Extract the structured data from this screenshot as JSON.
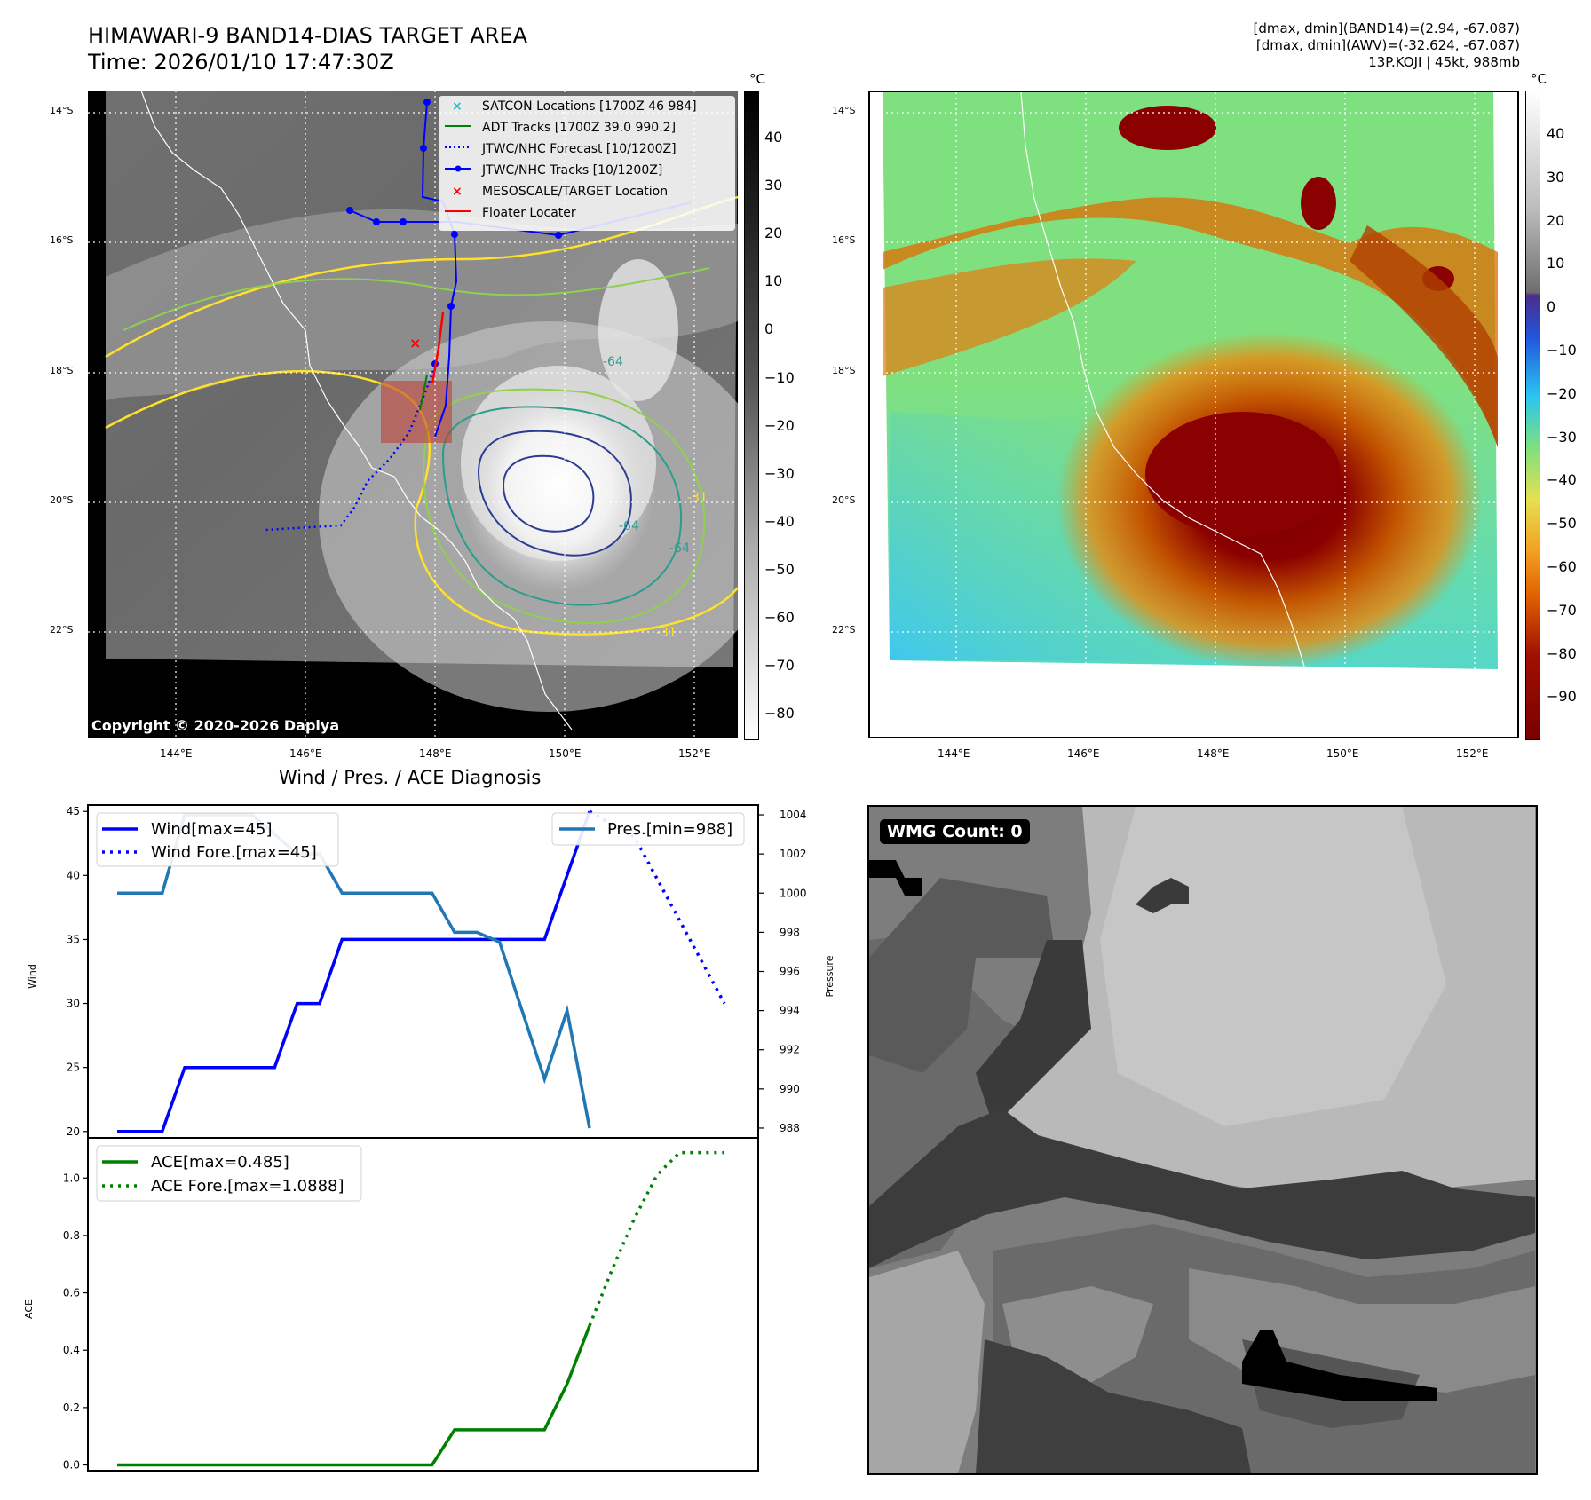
{
  "header": {
    "title_line1": "HIMAWARI-9 BAND14-DIAS TARGET AREA",
    "title_line2": "Time: 2026/01/10 17:47:30Z",
    "dmax_band14": "[dmax, dmin](BAND14)=(2.94, -67.087)",
    "dmax_awv": "[dmax, dmin](AWV)=(-32.624, -67.087)",
    "storm_info": "13P.KOJI | 45kt, 988mb"
  },
  "map": {
    "lat_labels": [
      "14°S",
      "16°S",
      "18°S",
      "20°S",
      "22°S"
    ],
    "lon_labels": [
      "144°E",
      "146°E",
      "148°E",
      "150°E",
      "152°E"
    ],
    "copyright": "Copyright © 2020-2026 Dapiya",
    "contour_labels": [
      "-64",
      "-64",
      "-31",
      "-31",
      "-64"
    ],
    "legend": [
      {
        "label": "SATCON Locations [1700Z 46 984]",
        "color": "#17becf"
      },
      {
        "label": "ADT Tracks [1700Z 39.0 990.2]",
        "color": "#008000"
      },
      {
        "label": "JTWC/NHC Forecast [10/1200Z]",
        "color": "#0000ff"
      },
      {
        "label": "JTWC/NHC Tracks [10/1200Z]",
        "color": "#0000ff"
      },
      {
        "label": "MESOSCALE/TARGET Location",
        "color": "#ff0000"
      },
      {
        "label": "Floater Locater",
        "color": "#ff0000"
      }
    ]
  },
  "colorbar_gray": {
    "unit": "°C",
    "ticks": [
      "40",
      "30",
      "20",
      "10",
      "0",
      "−10",
      "−20",
      "−30",
      "−40",
      "−50",
      "−60",
      "−70",
      "−80"
    ]
  },
  "colorbar_awv": {
    "unit": "°C",
    "ticks": [
      "40",
      "30",
      "20",
      "10",
      "0",
      "−10",
      "−20",
      "−30",
      "−40",
      "−50",
      "−60",
      "−70",
      "−80",
      "−90"
    ]
  },
  "wmg": {
    "label": "WMG Count: 0"
  },
  "colors": {
    "wind": "#0000ff",
    "pressure": "#1f77b4",
    "ace": "#008000",
    "contour_yellow": "#ffe02a",
    "contour_lime": "#8fd14f",
    "contour_teal": "#2a9d8f",
    "contour_navy": "#2c3e91"
  },
  "chart_data": [
    {
      "type": "line",
      "title": "Wind / Pres. / ACE Diagnosis",
      "ylabel": "Wind",
      "y2label": "Pressure",
      "ylim": [
        19.5,
        45.5
      ],
      "y2lim": [
        987.5,
        1004.5
      ],
      "yticks": [
        "45",
        "40",
        "35",
        "30",
        "25",
        "20"
      ],
      "y2ticks": [
        "1004",
        "1002",
        "1000",
        "998",
        "996",
        "994",
        "992",
        "990",
        "988"
      ],
      "x": [
        0,
        1,
        2,
        3,
        4,
        5,
        6,
        7,
        8,
        9,
        10,
        11,
        12,
        13,
        14,
        15,
        16,
        17,
        18,
        19,
        20,
        21,
        22,
        23,
        24,
        25,
        26,
        27
      ],
      "series": [
        {
          "name": "Wind[max=45]",
          "axis": "left",
          "style": "solid",
          "x": [
            0,
            1,
            2,
            3,
            4,
            5,
            6,
            7,
            8,
            9,
            10,
            11,
            12,
            13,
            14,
            15,
            16,
            17,
            18,
            19,
            20,
            21
          ],
          "values": [
            20,
            20,
            20,
            25,
            25,
            25,
            25,
            25,
            30,
            30,
            35,
            35,
            35,
            35,
            35,
            35,
            35,
            35,
            35,
            35,
            40,
            45
          ]
        },
        {
          "name": "Wind Fore.[max=45]",
          "axis": "left",
          "style": "dotted",
          "x": [
            21,
            23,
            27
          ],
          "values": [
            45,
            43,
            30
          ]
        },
        {
          "name": "Pres.[min=988]",
          "axis": "right",
          "style": "solid",
          "x": [
            0,
            1,
            2,
            3,
            4,
            5,
            6,
            7,
            8,
            9,
            10,
            11,
            12,
            13,
            14,
            15,
            16,
            17,
            18,
            19,
            20,
            21
          ],
          "values": [
            1000,
            1000,
            1000,
            1004,
            1004,
            1004,
            1004,
            1003,
            1002,
            1002,
            1000,
            1000,
            1000,
            1000,
            1000,
            998,
            998,
            997.5,
            994,
            990.5,
            994,
            988
          ]
        }
      ],
      "legend": [
        "Wind[max=45]",
        "Wind Fore.[max=45]",
        "Pres.[min=988]"
      ]
    },
    {
      "type": "line",
      "ylabel": "ACE",
      "ylim": [
        -0.02,
        1.14
      ],
      "yticks": [
        "1.0",
        "0.8",
        "0.6",
        "0.4",
        "0.2",
        "0.0"
      ],
      "x": [
        0,
        1,
        2,
        3,
        4,
        5,
        6,
        7,
        8,
        9,
        10,
        11,
        12,
        13,
        14,
        15,
        16,
        17,
        18,
        19,
        20,
        21
      ],
      "series": [
        {
          "name": "ACE[max=0.485]",
          "style": "solid",
          "x": [
            0,
            1,
            2,
            3,
            4,
            5,
            6,
            7,
            8,
            9,
            10,
            11,
            12,
            13,
            14,
            15,
            16,
            17,
            18,
            19,
            20,
            21
          ],
          "values": [
            0,
            0,
            0,
            0,
            0,
            0,
            0,
            0,
            0,
            0,
            0,
            0,
            0,
            0,
            0,
            0.1225,
            0.1225,
            0.1225,
            0.1225,
            0.1225,
            0.2825,
            0.485
          ]
        },
        {
          "name": "ACE Fore.[max=1.0888]",
          "style": "dotted",
          "x": [
            21,
            22,
            23,
            24,
            25,
            26,
            27
          ],
          "values": [
            0.485,
            0.68,
            0.86,
            1.01,
            1.0888,
            1.0888,
            1.0888
          ]
        }
      ],
      "legend": [
        "ACE[max=0.485]",
        "ACE Fore.[max=1.0888]"
      ]
    }
  ]
}
